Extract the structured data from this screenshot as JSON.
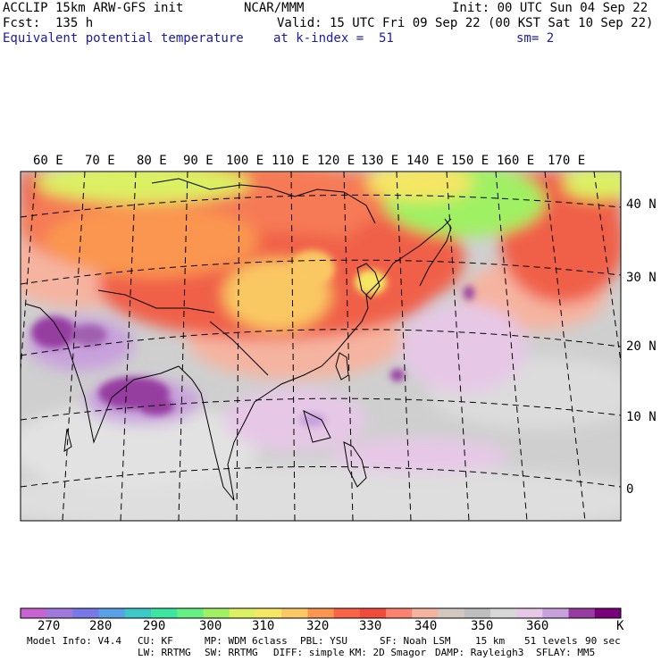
{
  "header": {
    "left_line1": "ACCLIP 15km ARW-GFS init",
    "left_line2": "Fcst:  135 h",
    "left_line3": "Equivalent potential temperature",
    "center_line1": "NCAR/MMM",
    "init_line": "Init: 00 UTC Sun 04 Sep 22",
    "valid_line": "Valid: 15 UTC Fri 09 Sep 22 (00 KST Sat 10 Sep 22)",
    "level_line": "at k-index =  51",
    "smooth_line": "sm= 2"
  },
  "map": {
    "lon_labels": [
      "60 E",
      "70 E",
      "80 E",
      "90 E",
      "100 E",
      "110 E",
      "120 E",
      "130 E",
      "140 E",
      "150 E",
      "160 E",
      "170 E"
    ],
    "lat_labels": [
      "40 N",
      "30 N",
      "20 N",
      "10 N",
      "0"
    ]
  },
  "colorbar": {
    "colors": [
      "#c864d2",
      "#a078dc",
      "#7878e6",
      "#5aa0e6",
      "#3cc8c8",
      "#3ce6a0",
      "#64f082",
      "#a0f064",
      "#dcf064",
      "#f5e664",
      "#fac864",
      "#fa9650",
      "#fa6446",
      "#f04b3c",
      "#fa826e",
      "#f5b4a0",
      "#d2c8c0",
      "#bebebe",
      "#d7d7d7",
      "#e6c8e6",
      "#c8a0dc",
      "#963ca0",
      "#780078"
    ],
    "tick_labels": [
      "270",
      "280",
      "290",
      "300",
      "310",
      "320",
      "330",
      "340",
      "350",
      "360"
    ],
    "unit": "K"
  },
  "footer": {
    "line1": [
      "Model Info: V4.4",
      "CU: KF",
      "MP: WDM 6class",
      "PBL: YSU",
      "SF: Noah LSM",
      "15 km",
      "51 levels",
      "90 sec"
    ],
    "line2": [
      "LW: RRTMG",
      "SW: RRTMG",
      "DIFF: simple",
      "KM: 2D Smagor",
      "DAMP: Rayleigh3",
      "SFLAY: MM5"
    ]
  }
}
